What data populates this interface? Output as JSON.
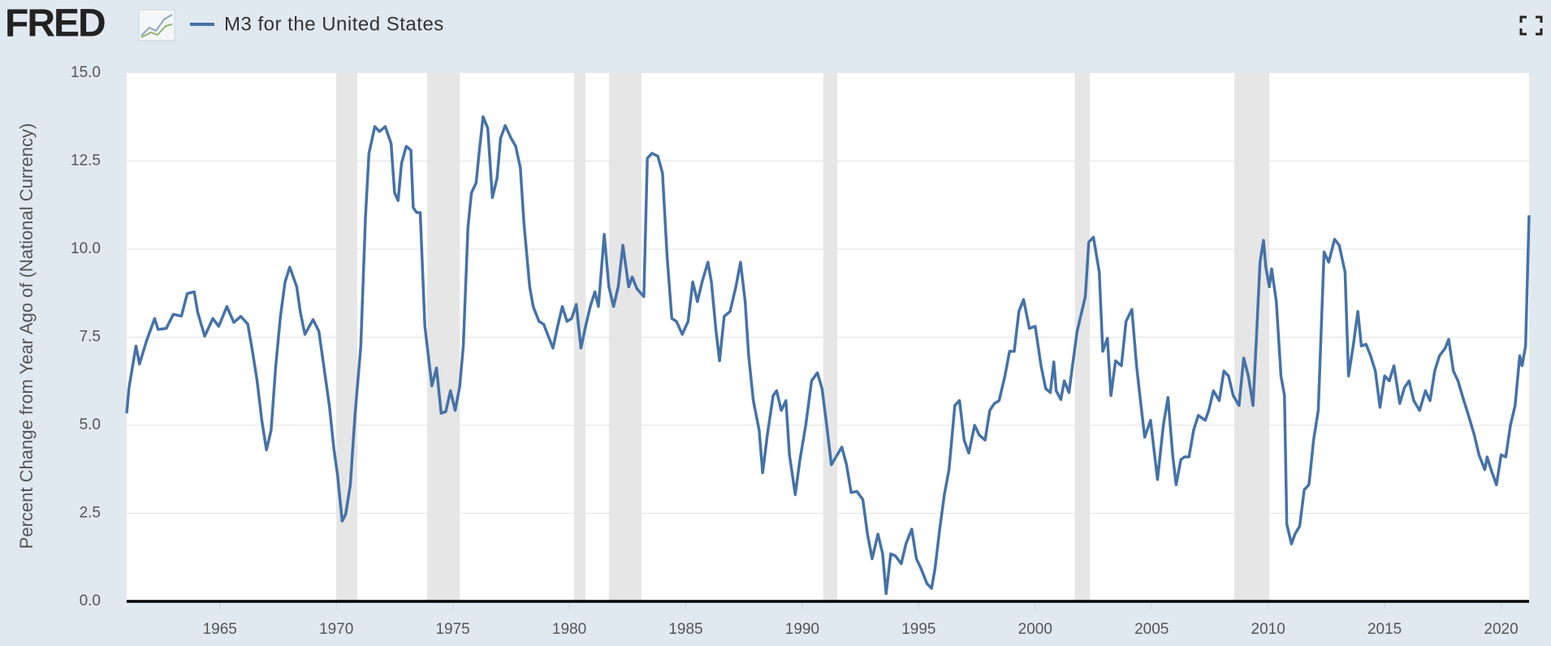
{
  "logo": "FRED",
  "chart_data": {
    "type": "line",
    "ylabel": "Percent Change from Year Ago of (National Currency)",
    "x": [
      1961.0,
      1961.1,
      1961.4,
      1961.55,
      1961.85,
      1962.2,
      1962.35,
      1962.7,
      1963.0,
      1963.35,
      1963.6,
      1963.9,
      1964.05,
      1964.35,
      1964.7,
      1964.95,
      1965.3,
      1965.6,
      1965.9,
      1966.2,
      1966.4,
      1966.6,
      1966.8,
      1967.0,
      1967.2,
      1967.4,
      1967.6,
      1967.8,
      1968.0,
      1968.3,
      1968.45,
      1968.65,
      1969.0,
      1969.25,
      1969.4,
      1969.7,
      1969.9,
      1970.05,
      1970.25,
      1970.4,
      1970.6,
      1970.8,
      1971.05,
      1971.25,
      1971.4,
      1971.65,
      1971.85,
      1972.1,
      1972.35,
      1972.5,
      1972.65,
      1972.8,
      1973.0,
      1973.2,
      1973.3,
      1973.45,
      1973.6,
      1973.8,
      1973.95,
      1974.1,
      1974.3,
      1974.5,
      1974.7,
      1974.9,
      1975.1,
      1975.3,
      1975.45,
      1975.65,
      1975.8,
      1976.0,
      1976.15,
      1976.3,
      1976.5,
      1976.7,
      1976.9,
      1977.05,
      1977.25,
      1977.5,
      1977.7,
      1977.9,
      1978.05,
      1978.3,
      1978.45,
      1978.7,
      1978.9,
      1979.1,
      1979.3,
      1979.5,
      1979.7,
      1979.9,
      1980.1,
      1980.3,
      1980.5,
      1980.7,
      1980.9,
      1981.1,
      1981.25,
      1981.5,
      1981.7,
      1981.9,
      1982.1,
      1982.3,
      1982.55,
      1982.7,
      1982.9,
      1983.2,
      1983.35,
      1983.55,
      1983.8,
      1984.0,
      1984.2,
      1984.4,
      1984.6,
      1984.85,
      1985.1,
      1985.3,
      1985.5,
      1985.7,
      1985.95,
      1986.1,
      1986.3,
      1986.45,
      1986.65,
      1986.9,
      1987.15,
      1987.35,
      1987.55,
      1987.7,
      1987.9,
      1988.15,
      1988.3,
      1988.5,
      1988.75,
      1988.9,
      1989.1,
      1989.3,
      1989.45,
      1989.7,
      1989.9,
      1990.15,
      1990.4,
      1990.65,
      1990.85,
      1991.05,
      1991.25,
      1991.5,
      1991.7,
      1991.9,
      1992.1,
      1992.35,
      1992.6,
      1992.8,
      1993.0,
      1993.25,
      1993.45,
      1993.6,
      1993.8,
      1994.0,
      1994.25,
      1994.45,
      1994.7,
      1994.9,
      1995.1,
      1995.35,
      1995.55,
      1995.7,
      1995.9,
      1996.1,
      1996.3,
      1996.55,
      1996.75,
      1996.95,
      1997.15,
      1997.4,
      1997.6,
      1997.85,
      1998.05,
      1998.25,
      1998.45,
      1998.7,
      1998.9,
      1999.1,
      1999.3,
      1999.5,
      1999.75,
      2000.0,
      2000.25,
      2000.45,
      2000.65,
      2000.8,
      2000.9,
      2001.1,
      2001.25,
      2001.45,
      2001.6,
      2001.8,
      2001.95,
      2002.15,
      2002.3,
      2002.5,
      2002.75,
      2002.9,
      2003.1,
      2003.25,
      2003.45,
      2003.7,
      2003.9,
      2004.15,
      2004.35,
      2004.55,
      2004.7,
      2004.95,
      2005.25,
      2005.5,
      2005.7,
      2005.9,
      2006.05,
      2006.25,
      2006.4,
      2006.6,
      2006.8,
      2007.0,
      2007.3,
      2007.45,
      2007.65,
      2007.9,
      2008.1,
      2008.3,
      2008.5,
      2008.75,
      2008.95,
      2009.15,
      2009.35,
      2009.5,
      2009.65,
      2009.8,
      2009.9,
      2010.05,
      2010.15,
      2010.35,
      2010.55,
      2010.7,
      2010.8,
      2011.0,
      2011.15,
      2011.35,
      2011.55,
      2011.75,
      2011.95,
      2012.15,
      2012.4,
      2012.6,
      2012.85,
      2013.05,
      2013.3,
      2013.45,
      2013.65,
      2013.85,
      2014.0,
      2014.2,
      2014.4,
      2014.6,
      2014.8,
      2015.0,
      2015.2,
      2015.4,
      2015.65,
      2015.85,
      2016.05,
      2016.25,
      2016.5,
      2016.75,
      2016.95,
      2017.15,
      2017.35,
      2017.6,
      2017.75,
      2017.95,
      2018.15,
      2018.4,
      2018.6,
      2018.85,
      2019.05,
      2019.3,
      2019.4,
      2019.6,
      2019.8,
      2020.0,
      2020.2,
      2020.4,
      2020.6,
      2020.8,
      2020.9,
      2021.05,
      2021.2
    ],
    "series": [
      {
        "name": "M3 for the United States",
        "color": "#4572a7",
        "values": [
          5.34,
          6.07,
          7.25,
          6.74,
          7.39,
          8.03,
          7.72,
          7.75,
          8.15,
          8.1,
          8.74,
          8.79,
          8.2,
          7.53,
          8.03,
          7.81,
          8.37,
          7.92,
          8.09,
          7.87,
          7.1,
          6.26,
          5.14,
          4.3,
          4.86,
          6.69,
          8.09,
          9.07,
          9.49,
          8.93,
          8.23,
          7.58,
          8.0,
          7.67,
          6.97,
          5.56,
          4.3,
          3.6,
          2.28,
          2.47,
          3.31,
          5.28,
          7.25,
          10.9,
          12.72,
          13.48,
          13.34,
          13.48,
          13.0,
          11.6,
          11.38,
          12.44,
          12.92,
          12.81,
          11.18,
          11.04,
          11.04,
          7.81,
          6.97,
          6.12,
          6.63,
          5.34,
          5.39,
          5.98,
          5.42,
          6.12,
          7.25,
          10.62,
          11.6,
          11.88,
          12.87,
          13.76,
          13.43,
          11.46,
          12.02,
          13.15,
          13.51,
          13.15,
          12.92,
          12.3,
          10.76,
          8.93,
          8.37,
          7.95,
          7.87,
          7.53,
          7.19,
          7.81,
          8.37,
          7.95,
          8.03,
          8.43,
          7.19,
          7.81,
          8.37,
          8.79,
          8.37,
          10.42,
          8.93,
          8.37,
          8.93,
          10.11,
          8.93,
          9.21,
          8.88,
          8.65,
          12.58,
          12.72,
          12.64,
          12.16,
          9.78,
          8.03,
          7.95,
          7.58,
          7.95,
          9.07,
          8.51,
          9.07,
          9.63,
          9.07,
          7.67,
          6.83,
          8.09,
          8.23,
          8.93,
          9.63,
          8.51,
          6.97,
          5.7,
          4.86,
          3.65,
          4.72,
          5.84,
          5.98,
          5.42,
          5.7,
          4.16,
          3.03,
          4.02,
          5.0,
          6.26,
          6.49,
          6.04,
          5.0,
          3.88,
          4.16,
          4.38,
          3.88,
          3.09,
          3.12,
          2.89,
          1.91,
          1.21,
          1.91,
          1.35,
          0.22,
          1.35,
          1.29,
          1.07,
          1.63,
          2.05,
          1.21,
          0.93,
          0.51,
          0.37,
          0.93,
          2.05,
          3.03,
          3.74,
          5.56,
          5.7,
          4.58,
          4.21,
          5.0,
          4.72,
          4.58,
          5.42,
          5.62,
          5.7,
          6.4,
          7.1,
          7.1,
          8.23,
          8.57,
          7.75,
          7.81,
          6.69,
          6.04,
          5.93,
          6.8,
          5.98,
          5.73,
          6.26,
          5.93,
          6.69,
          7.67,
          8.09,
          8.65,
          10.2,
          10.34,
          9.35,
          7.1,
          7.47,
          5.84,
          6.83,
          6.69,
          7.95,
          8.29,
          6.69,
          5.51,
          4.66,
          5.14,
          3.46,
          5.0,
          5.79,
          4.16,
          3.31,
          4.02,
          4.1,
          4.1,
          4.86,
          5.28,
          5.14,
          5.42,
          5.98,
          5.7,
          6.54,
          6.4,
          5.84,
          5.56,
          6.91,
          6.4,
          5.56,
          7.53,
          9.63,
          10.25,
          9.49,
          8.93,
          9.44,
          8.51,
          6.4,
          5.84,
          2.19,
          1.63,
          1.91,
          2.13,
          3.17,
          3.31,
          4.58,
          5.42,
          9.92,
          9.63,
          10.28,
          10.11,
          9.35,
          6.4,
          7.25,
          8.23,
          7.25,
          7.3,
          6.97,
          6.54,
          5.51,
          6.4,
          6.26,
          6.69,
          5.62,
          6.07,
          6.26,
          5.7,
          5.42,
          5.98,
          5.7,
          6.54,
          6.97,
          7.19,
          7.44,
          6.54,
          6.26,
          5.7,
          5.28,
          4.72,
          4.16,
          3.74,
          4.1,
          3.68,
          3.31,
          4.16,
          4.1,
          5.0,
          5.56,
          6.97,
          6.69,
          7.25,
          10.96
        ]
      }
    ],
    "recessions": [
      [
        1970.0,
        1970.9
      ],
      [
        1973.9,
        1975.3
      ],
      [
        1980.2,
        1980.7
      ],
      [
        1981.7,
        1983.1
      ],
      [
        1990.9,
        1991.5
      ],
      [
        2001.7,
        2002.35
      ],
      [
        2008.55,
        2010.05
      ]
    ],
    "recession_color": "#e6e6e6",
    "xlim": [
      1961.0,
      2021.2
    ],
    "xticks": [
      1965,
      1970,
      1975,
      1980,
      1985,
      1990,
      1995,
      2000,
      2005,
      2010,
      2015,
      2020
    ],
    "ylim": [
      0,
      15
    ],
    "yticks": [
      {
        "value": 0,
        "label": "0.0"
      },
      2.5,
      {
        "value": 5,
        "label": "5.0"
      },
      7.5,
      {
        "value": 10,
        "label": "10.0"
      },
      12.5,
      {
        "value": 15,
        "label": "15.0"
      }
    ],
    "grid": true
  }
}
